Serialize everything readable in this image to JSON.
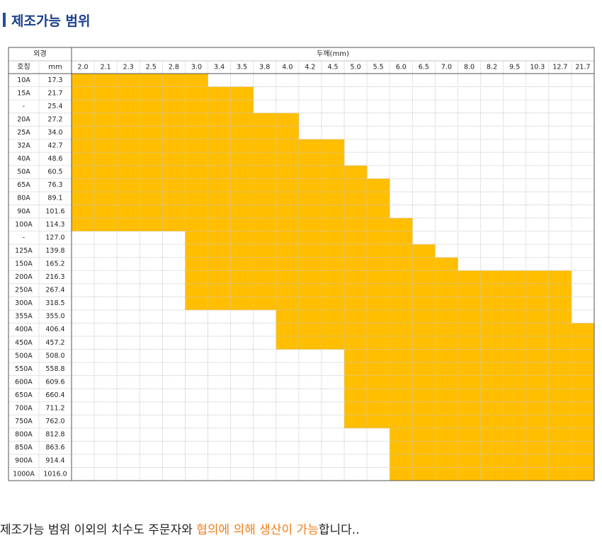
{
  "title": "제조가능 범위",
  "table": {
    "group_header_od": "외경",
    "group_header_thickness": "두께(mm)",
    "col_header_nominal": "호칭",
    "col_header_mm": "mm",
    "thicknesses": [
      "2.0",
      "2.1",
      "2.3",
      "2.5",
      "2.8",
      "3.0",
      "3.4",
      "3.5",
      "3.8",
      "4.0",
      "4.2",
      "4.5",
      "5.0",
      "5.5",
      "6.0",
      "6.5",
      "7.0",
      "8.0",
      "8.2",
      "9.5",
      "10.3",
      "12.7",
      "21.7"
    ],
    "rows": [
      {
        "nominal": "10A",
        "od": "17.3",
        "range": [
          0,
          5
        ]
      },
      {
        "nominal": "15A",
        "od": "21.7",
        "range": [
          0,
          7
        ]
      },
      {
        "nominal": "-",
        "od": "25.4",
        "range": [
          0,
          7
        ]
      },
      {
        "nominal": "20A",
        "od": "27.2",
        "range": [
          0,
          9
        ]
      },
      {
        "nominal": "25A",
        "od": "34.0",
        "range": [
          0,
          9
        ]
      },
      {
        "nominal": "32A",
        "od": "42.7",
        "range": [
          0,
          11
        ]
      },
      {
        "nominal": "40A",
        "od": "48.6",
        "range": [
          0,
          11
        ]
      },
      {
        "nominal": "50A",
        "od": "60.5",
        "range": [
          0,
          12
        ]
      },
      {
        "nominal": "65A",
        "od": "76.3",
        "range": [
          0,
          13
        ]
      },
      {
        "nominal": "80A",
        "od": "89.1",
        "range": [
          0,
          13
        ]
      },
      {
        "nominal": "90A",
        "od": "101.6",
        "range": [
          0,
          13
        ]
      },
      {
        "nominal": "100A",
        "od": "114.3",
        "range": [
          0,
          14
        ]
      },
      {
        "nominal": "-",
        "od": "127.0",
        "range": [
          5,
          14
        ]
      },
      {
        "nominal": "125A",
        "od": "139.8",
        "range": [
          5,
          15
        ]
      },
      {
        "nominal": "150A",
        "od": "165.2",
        "range": [
          5,
          16
        ]
      },
      {
        "nominal": "200A",
        "od": "216.3",
        "range": [
          5,
          21
        ]
      },
      {
        "nominal": "250A",
        "od": "267.4",
        "range": [
          5,
          21
        ]
      },
      {
        "nominal": "300A",
        "od": "318.5",
        "range": [
          5,
          21
        ]
      },
      {
        "nominal": "355A",
        "od": "355.0",
        "range": [
          9,
          21
        ]
      },
      {
        "nominal": "400A",
        "od": "406.4",
        "range": [
          9,
          22
        ]
      },
      {
        "nominal": "450A",
        "od": "457.2",
        "range": [
          9,
          22
        ]
      },
      {
        "nominal": "500A",
        "od": "508.0",
        "range": [
          12,
          22
        ]
      },
      {
        "nominal": "550A",
        "od": "558.8",
        "range": [
          12,
          22
        ]
      },
      {
        "nominal": "600A",
        "od": "609.6",
        "range": [
          12,
          22
        ]
      },
      {
        "nominal": "650A",
        "od": "660.4",
        "range": [
          12,
          22
        ]
      },
      {
        "nominal": "700A",
        "od": "711.2",
        "range": [
          12,
          22
        ]
      },
      {
        "nominal": "750A",
        "od": "762.0",
        "range": [
          12,
          22
        ]
      },
      {
        "nominal": "800A",
        "od": "812.8",
        "range": [
          14,
          22
        ]
      },
      {
        "nominal": "850A",
        "od": "863.6",
        "range": [
          14,
          22
        ]
      },
      {
        "nominal": "900A",
        "od": "914.4",
        "range": [
          14,
          22
        ]
      },
      {
        "nominal": "1000A",
        "od": "1016.0",
        "range": [
          14,
          22
        ]
      }
    ]
  },
  "colors": {
    "fill": "#ffbe00",
    "grid": "#c6c6c6",
    "border": "#555555",
    "title": "#1b3f8c",
    "highlight": "#ef7f1a"
  },
  "footer": {
    "text_before": "제조가능 범위 이외의 치수도 주문자와 ",
    "text_highlight": "협의에 의해 생산이 가능",
    "text_after": "합니다.."
  }
}
